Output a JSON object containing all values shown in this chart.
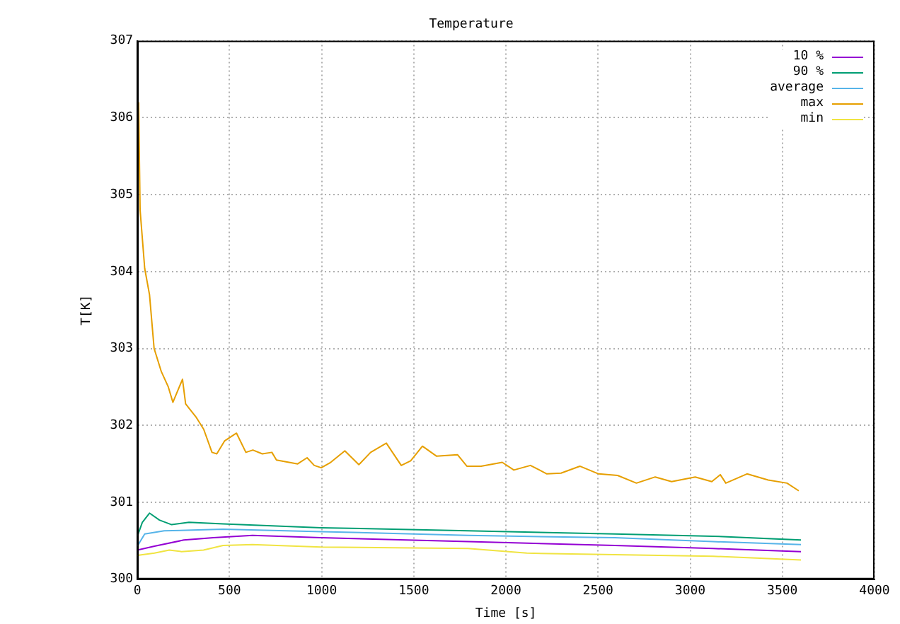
{
  "chart_data": {
    "type": "line",
    "title": "Temperature",
    "xlabel": "Time [s]",
    "ylabel": "T[K]",
    "xlim": [
      0,
      4000
    ],
    "xticks": [
      0,
      500,
      1000,
      1500,
      2000,
      2500,
      3000,
      3500,
      4000
    ],
    "ylim": [
      300,
      307
    ],
    "yticks": [
      300,
      301,
      302,
      303,
      304,
      305,
      306,
      307
    ],
    "grid": true,
    "legend": "top right",
    "marker": "none",
    "line_style": "solid",
    "series": [
      {
        "name": "10 %",
        "color": "#9400d3",
        "x": [
          0,
          93,
          252,
          412,
          625,
          997,
          1794,
          2591,
          3123,
          3601
        ],
        "values": [
          300.38,
          300.43,
          300.51,
          300.54,
          300.57,
          300.54,
          300.49,
          300.44,
          300.4,
          300.36
        ]
      },
      {
        "name": "90 %",
        "color": "#009e73",
        "x": [
          0,
          27,
          66,
          120,
          186,
          280,
          465,
          997,
          1794,
          2591,
          3123,
          3601
        ],
        "values": [
          300.56,
          300.74,
          300.86,
          300.77,
          300.71,
          300.74,
          300.72,
          300.67,
          300.63,
          300.59,
          300.56,
          300.51
        ]
      },
      {
        "name": "average",
        "color": "#56b4e9",
        "x": [
          0,
          40,
          146,
          465,
          997,
          1794,
          2591,
          3123,
          3601
        ],
        "values": [
          300.43,
          300.59,
          300.63,
          300.65,
          300.62,
          300.57,
          300.54,
          300.49,
          300.45
        ]
      },
      {
        "name": "max",
        "color": "#e69f00",
        "x": [
          7,
          15,
          40,
          66,
          91,
          130,
          168,
          193,
          245,
          262,
          321,
          360,
          405,
          431,
          474,
          538,
          589,
          627,
          678,
          730,
          755,
          870,
          921,
          960,
          998,
          1049,
          1126,
          1202,
          1266,
          1351,
          1432,
          1483,
          1547,
          1624,
          1737,
          1788,
          1865,
          1980,
          2043,
          2133,
          2222,
          2299,
          2401,
          2503,
          2606,
          2708,
          2810,
          2899,
          3027,
          3117,
          3163,
          3193,
          3308,
          3423,
          3525,
          3589
        ],
        "values": [
          306.2,
          304.8,
          304.04,
          303.7,
          303.0,
          302.7,
          302.5,
          302.3,
          302.6,
          302.28,
          302.1,
          301.95,
          301.65,
          301.63,
          301.8,
          301.9,
          301.65,
          301.68,
          301.63,
          301.65,
          301.55,
          301.5,
          301.58,
          301.48,
          301.45,
          301.52,
          301.67,
          301.49,
          301.65,
          301.77,
          301.48,
          301.54,
          301.73,
          301.6,
          301.62,
          301.47,
          301.47,
          301.52,
          301.42,
          301.48,
          301.37,
          301.38,
          301.47,
          301.37,
          301.35,
          301.25,
          301.33,
          301.27,
          301.33,
          301.27,
          301.36,
          301.25,
          301.37,
          301.29,
          301.25,
          301.15
        ]
      },
      {
        "name": "min",
        "color": "#f0e442",
        "x": [
          0,
          93,
          173,
          239,
          359,
          465,
          625,
          997,
          1794,
          2113,
          2591,
          3123,
          3601
        ],
        "values": [
          300.31,
          300.34,
          300.38,
          300.36,
          300.38,
          300.44,
          300.45,
          300.42,
          300.4,
          300.34,
          300.32,
          300.3,
          300.25
        ]
      }
    ]
  }
}
